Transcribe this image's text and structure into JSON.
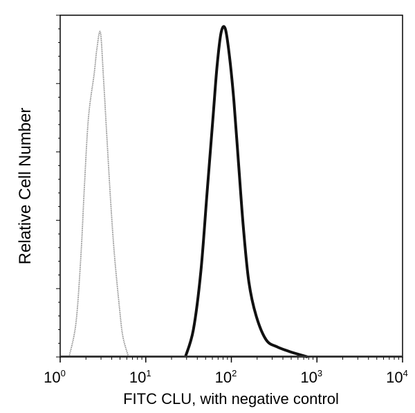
{
  "chart_data": {
    "type": "line",
    "title": "",
    "xlabel": "FITC CLU, with negative control",
    "ylabel": "Relative Cell Number",
    "xscale": "log",
    "xlim": [
      1,
      10000
    ],
    "ylim": [
      0,
      100
    ],
    "grid": false,
    "x_ticks": [
      {
        "base": "10",
        "exp": "0",
        "value": 1
      },
      {
        "base": "10",
        "exp": "1",
        "value": 10
      },
      {
        "base": "10",
        "exp": "2",
        "value": 100
      },
      {
        "base": "10",
        "exp": "3",
        "value": 1000
      },
      {
        "base": "10",
        "exp": "4",
        "value": 10000
      }
    ],
    "series": [
      {
        "color": "#888888",
        "style": "dotted-thin",
        "x": [
          1.27,
          1.53,
          1.75,
          1.92,
          2.14,
          2.5,
          2.68,
          2.95,
          3.2,
          3.5,
          3.9,
          4.3,
          4.9,
          5.4,
          6.3
        ],
        "y": [
          0,
          10,
          30,
          50,
          70,
          83,
          90,
          95,
          82,
          65,
          45,
          30,
          15,
          6,
          0
        ]
      },
      {
        "color": "#111111",
        "style": "solid-thick",
        "x": [
          29,
          36,
          44,
          52,
          61,
          68,
          76,
          85,
          95,
          107,
          121,
          138,
          160,
          195,
          255,
          340,
          490,
          780
        ],
        "y": [
          0,
          8,
          25,
          48,
          70,
          85,
          95,
          96,
          88,
          75,
          57,
          38,
          22,
          12,
          5,
          3,
          1.5,
          0
        ]
      }
    ]
  }
}
